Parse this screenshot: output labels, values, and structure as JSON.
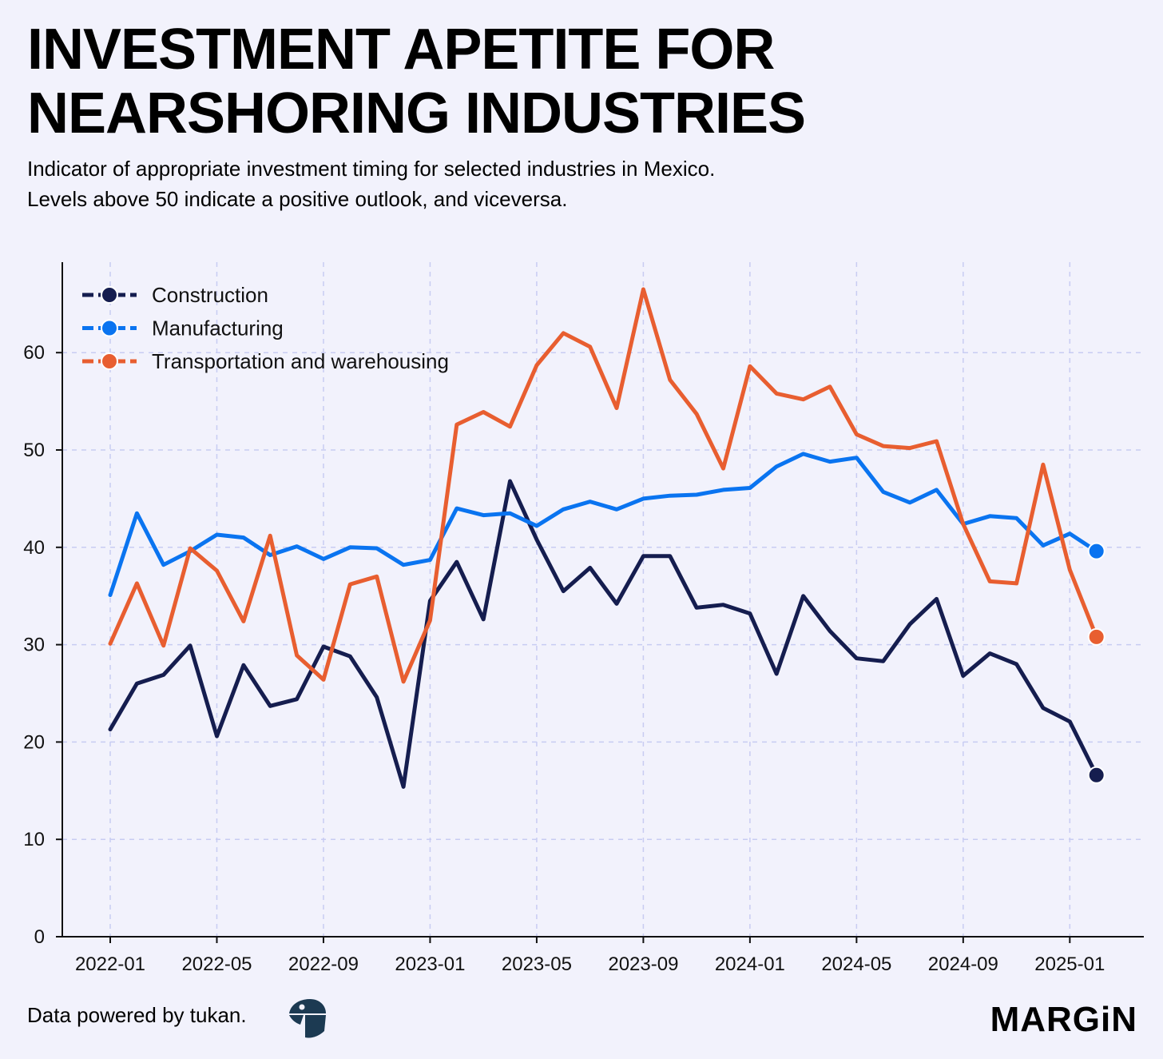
{
  "title_lines": [
    "INVESTMENT APETITE FOR",
    "NEARSHORING INDUSTRIES"
  ],
  "subtitle_lines": [
    "Indicator of appropriate investment timing for selected industries in Mexico.",
    "Levels above 50 indicate a positive outlook, and viceversa."
  ],
  "footer": {
    "source": "Data powered by tukan.",
    "source_logo_icon": "tukan-logo-icon",
    "brand": "MARGiN"
  },
  "colors": {
    "background": "#f2f2fc",
    "grid": "#c8ccf2",
    "construction": "#151d4f",
    "manufacturing": "#0a74f0",
    "transportation": "#e85e30"
  },
  "chart_data": {
    "type": "line",
    "title": "INVESTMENT APETITE FOR NEARSHORING INDUSTRIES",
    "xlabel": "",
    "ylabel": "",
    "ylim": [
      0,
      69
    ],
    "yticks": [
      0,
      10,
      20,
      30,
      40,
      50,
      60
    ],
    "x_tick_labels": [
      "2022-01",
      "2022-05",
      "2022-09",
      "2023-01",
      "2023-05",
      "2023-09",
      "2024-01",
      "2024-05",
      "2024-09",
      "2025-01"
    ],
    "grid": true,
    "legend_position": "top-left",
    "x": [
      "2022-01",
      "2022-02",
      "2022-03",
      "2022-04",
      "2022-05",
      "2022-06",
      "2022-07",
      "2022-08",
      "2022-09",
      "2022-10",
      "2022-11",
      "2022-12",
      "2023-01",
      "2023-02",
      "2023-03",
      "2023-04",
      "2023-05",
      "2023-06",
      "2023-07",
      "2023-08",
      "2023-09",
      "2023-10",
      "2023-11",
      "2023-12",
      "2024-01",
      "2024-02",
      "2024-03",
      "2024-04",
      "2024-05",
      "2024-06",
      "2024-07",
      "2024-08",
      "2024-09",
      "2024-10",
      "2024-11",
      "2024-12",
      "2025-01",
      "2025-02"
    ],
    "series": [
      {
        "name": "Construction",
        "color": "#151d4f",
        "values": [
          21.3,
          26.0,
          26.9,
          29.9,
          20.6,
          27.9,
          23.7,
          24.4,
          29.8,
          28.8,
          24.6,
          15.4,
          34.5,
          38.5,
          32.6,
          46.8,
          40.8,
          35.5,
          37.9,
          34.2,
          39.1,
          39.1,
          33.8,
          34.1,
          33.2,
          27.0,
          35.0,
          31.4,
          28.6,
          28.3,
          32.1,
          34.7,
          26.8,
          29.1,
          28.0,
          23.5,
          22.1,
          16.6
        ]
      },
      {
        "name": "Manufacturing",
        "color": "#0a74f0",
        "values": [
          35.1,
          43.5,
          38.2,
          39.6,
          41.3,
          41.0,
          39.2,
          40.1,
          38.8,
          40.0,
          39.9,
          38.2,
          38.7,
          44.0,
          43.3,
          43.5,
          42.2,
          43.9,
          44.7,
          43.9,
          45.0,
          45.3,
          45.4,
          45.9,
          46.1,
          48.3,
          49.6,
          48.8,
          49.2,
          45.7,
          44.6,
          45.9,
          42.4,
          43.2,
          43.0,
          40.2,
          41.4,
          39.6
        ]
      },
      {
        "name": "Transportation and warehousing",
        "color": "#e85e30",
        "values": [
          30.1,
          36.3,
          29.9,
          39.9,
          37.6,
          32.4,
          41.2,
          28.9,
          26.4,
          36.2,
          37.0,
          26.2,
          32.5,
          52.6,
          53.9,
          52.4,
          58.7,
          62.0,
          60.6,
          54.3,
          66.5,
          57.2,
          53.7,
          48.1,
          58.6,
          55.8,
          55.2,
          56.5,
          51.6,
          50.4,
          50.2,
          50.9,
          42.4,
          36.5,
          36.3,
          48.5,
          37.7,
          30.8
        ]
      }
    ]
  }
}
